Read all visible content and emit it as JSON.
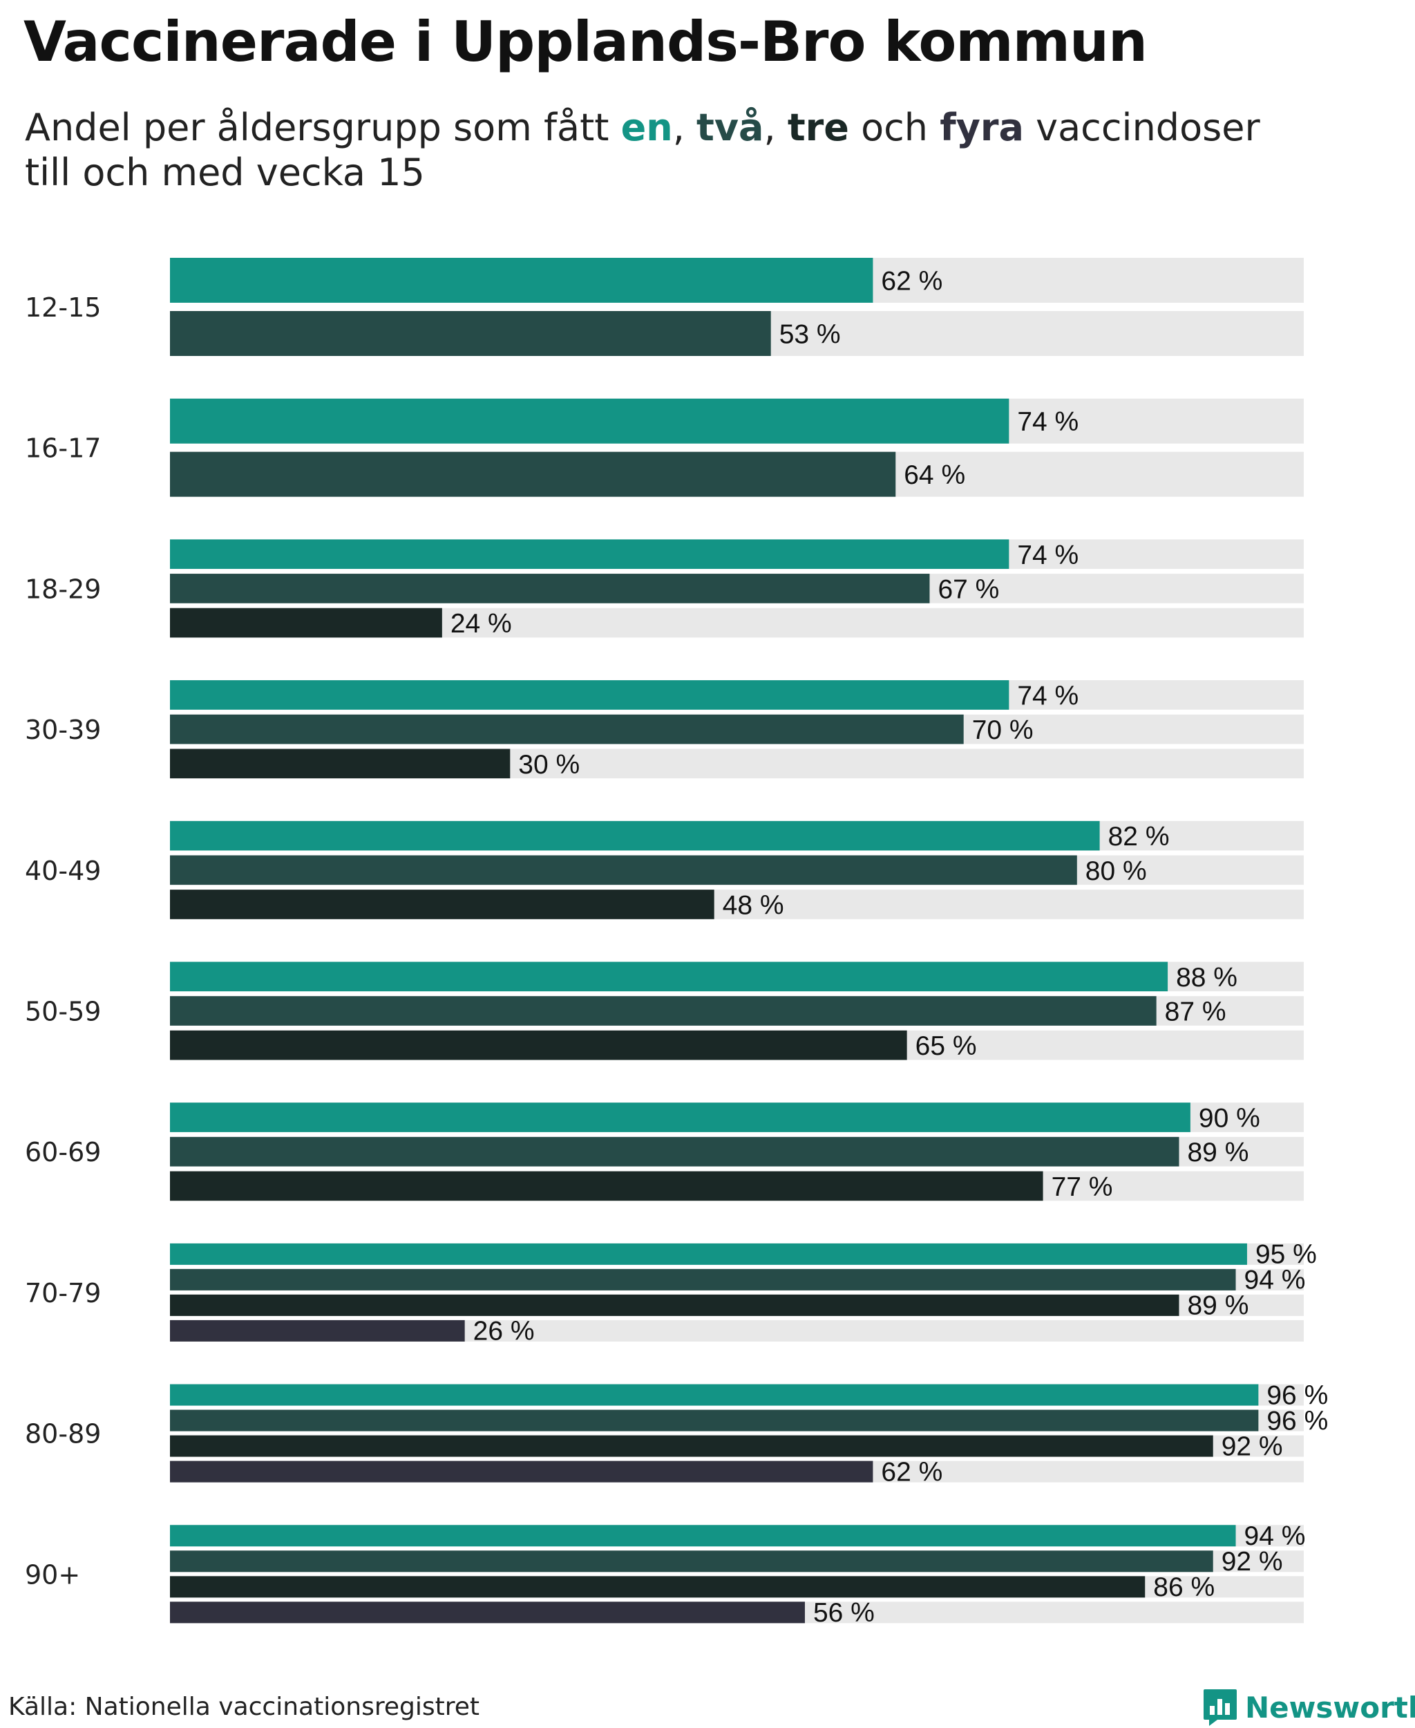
{
  "title": "Vaccinerade i Upplands-Bro kommun",
  "subtitle": {
    "prefix": "Andel per åldersgrupp som fått ",
    "dose1": "en",
    "sep1": ", ",
    "dose2": "två",
    "sep2": ", ",
    "dose3": "tre",
    "sep3": " och ",
    "dose4": "fyra",
    "suffix_line1": " vaccindoser",
    "line2": "till och med vecka 15"
  },
  "source": "Källa: Nationella vaccinationsregistret",
  "brand": {
    "name": "Newsworthy",
    "icon": "newsworthy-logo-icon"
  },
  "colors": {
    "dose1": "#139485",
    "dose2": "#264b48",
    "dose3": "#1a2826",
    "dose4": "#31313f",
    "track": "#e8e8e8"
  },
  "chart_data": {
    "type": "bar",
    "orientation": "horizontal",
    "value_suffix": " %",
    "xlim": [
      0,
      100
    ],
    "categories": [
      "12-15",
      "16-17",
      "18-29",
      "30-39",
      "40-49",
      "50-59",
      "60-69",
      "70-79",
      "80-89",
      "90+"
    ],
    "series": [
      {
        "values": [
          62,
          74,
          74,
          74,
          82,
          88,
          90,
          95,
          96,
          94
        ]
      },
      {
        "values": [
          53,
          64,
          67,
          70,
          80,
          87,
          89,
          94,
          96,
          92
        ]
      },
      {
        "values": [
          null,
          null,
          24,
          30,
          48,
          65,
          77,
          89,
          92,
          86
        ]
      },
      {
        "values": [
          null,
          null,
          null,
          null,
          null,
          null,
          null,
          26,
          62,
          56
        ]
      }
    ]
  }
}
